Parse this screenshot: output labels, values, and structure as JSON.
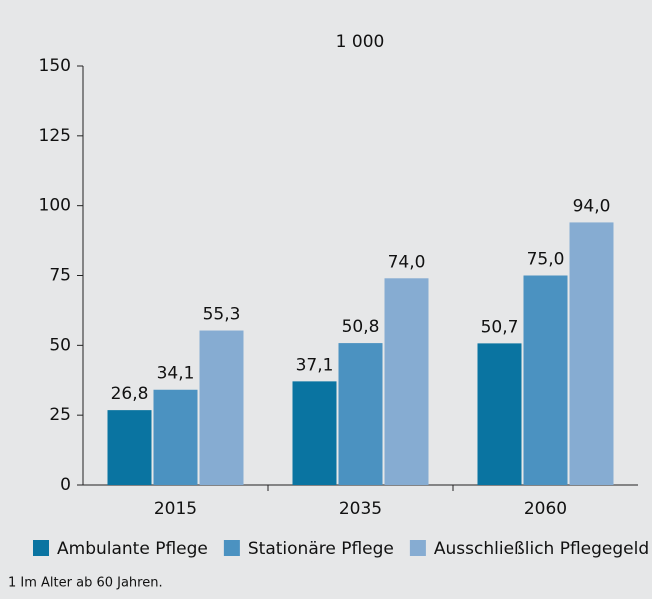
{
  "chart_data": {
    "type": "bar",
    "title": "1 000",
    "categories": [
      "2015",
      "2035",
      "2060"
    ],
    "series": [
      {
        "name": "Ambulante Pflege",
        "color": "#0a74a1",
        "values": [
          26.8,
          37.1,
          50.7
        ],
        "value_labels": [
          "26,8",
          "37,1",
          "50,7"
        ]
      },
      {
        "name": "Stationäre Pflege",
        "color": "#4b92c1",
        "values": [
          34.1,
          50.8,
          75.0
        ],
        "value_labels": [
          "34,1",
          "50,8",
          "75,0"
        ]
      },
      {
        "name": "Ausschließlich Pflegegeld",
        "color": "#86acd2",
        "values": [
          55.3,
          74.0,
          94.0
        ],
        "value_labels": [
          "55,3",
          "74,0",
          "94,0"
        ]
      }
    ],
    "ylim": [
      0,
      150
    ],
    "yticks": [
      0,
      25,
      50,
      75,
      100,
      125,
      150
    ],
    "footnote": "1 Im Alter ab 60 Jahren."
  }
}
